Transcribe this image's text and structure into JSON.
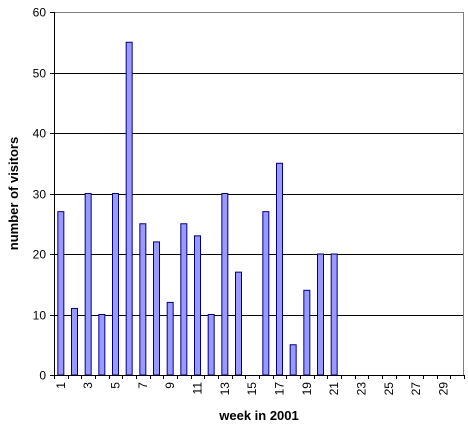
{
  "chart_data": {
    "type": "bar",
    "title": "",
    "xlabel": "week in 2001",
    "ylabel": "number of visitors",
    "ylim": [
      0,
      60
    ],
    "yticks": [
      0,
      10,
      20,
      30,
      40,
      50,
      60
    ],
    "grid": true,
    "legend": "none",
    "categories": [
      1,
      2,
      3,
      4,
      5,
      6,
      7,
      8,
      9,
      10,
      11,
      12,
      13,
      14,
      15,
      16,
      17,
      18,
      19,
      20,
      21,
      22,
      23,
      24,
      25,
      26,
      27,
      28,
      29,
      30
    ],
    "category_tick_labels": [
      "1",
      "3",
      "5",
      "7",
      "9",
      "11",
      "13",
      "15",
      "17",
      "19",
      "21",
      "23",
      "25",
      "27",
      "29"
    ],
    "values": [
      27,
      11,
      30,
      10,
      30,
      55,
      25,
      22,
      12,
      25,
      23,
      10,
      30,
      17,
      0,
      27,
      35,
      5,
      14,
      20,
      20,
      0,
      0,
      0,
      0,
      0,
      0,
      0,
      0,
      0
    ],
    "colors": {
      "bar_fill": "#9999ff",
      "bar_stroke": "#000080",
      "grid": "#000000",
      "axis": "#808080",
      "background": "#ffffff"
    }
  }
}
